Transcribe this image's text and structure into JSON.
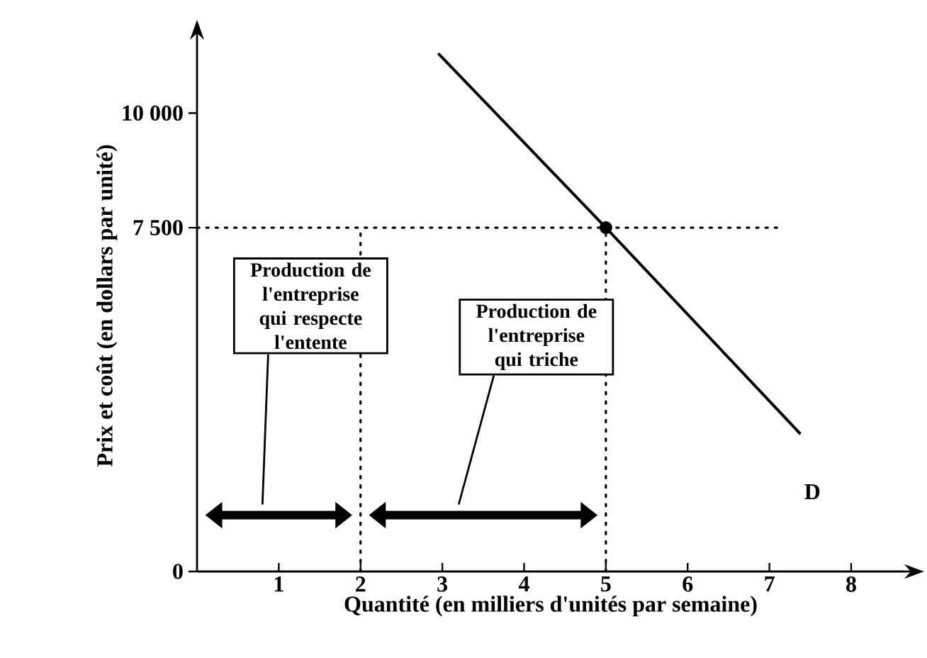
{
  "chart_data": {
    "type": "line",
    "xlabel": "Quantité (en milliers d'unités par semaine)",
    "ylabel": "Prix et coût (en dollars par unité)",
    "xlim": [
      0,
      8.65
    ],
    "ylim": [
      0,
      11600
    ],
    "xticks": [
      1,
      2,
      3,
      4,
      5,
      6,
      7,
      8
    ],
    "yticks": [
      0,
      {
        "value": 7500,
        "label": "7 500"
      },
      {
        "value": 10000,
        "label": "10 000"
      }
    ],
    "series": [
      {
        "type": "line",
        "x": [
          2.95,
          5,
          7.38
        ],
        "values": [
          11300,
          7500,
          3000
        ],
        "color": "#000000",
        "marker": "none",
        "line_style": "solid"
      },
      {
        "type": "scatter",
        "x": [
          5
        ],
        "values": [
          7500
        ],
        "color": "#000000",
        "marker": "circle"
      }
    ],
    "ref_lines": [
      {
        "axis": "y",
        "value": 7500,
        "line_style": "dotted"
      },
      {
        "axis": "x",
        "value": 2,
        "line_style": "dotted"
      },
      {
        "axis": "x",
        "value": 5,
        "line_style": "dotted"
      }
    ],
    "annotations": [
      "Production de l'entreprise qui respecte l'entente",
      "Production de l'entreprise qui triche",
      "D"
    ]
  }
}
